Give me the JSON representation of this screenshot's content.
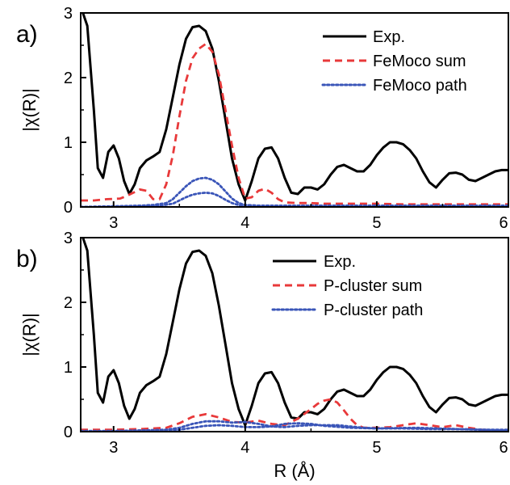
{
  "chart_data": [
    {
      "type": "line",
      "panel_label": "a)",
      "ylabel": "|χ(R)|",
      "xlabel": "",
      "xlim": [
        2.75,
        6.0
      ],
      "ylim": [
        0,
        3
      ],
      "xticks": [
        3,
        4,
        5,
        6
      ],
      "xtick_labels": [
        "3",
        "4",
        "5",
        "6"
      ],
      "yticks": [
        0,
        1,
        2,
        3
      ],
      "ytick_labels": [
        "0",
        "1",
        "2",
        "3"
      ],
      "legend_position": "top-right",
      "grid": false,
      "series": [
        {
          "name": "Exp.",
          "color": "#000000",
          "style": "solid",
          "x": [
            2.75,
            2.8,
            2.85,
            2.88,
            2.92,
            2.96,
            3.0,
            3.04,
            3.08,
            3.12,
            3.16,
            3.2,
            3.25,
            3.3,
            3.35,
            3.4,
            3.45,
            3.5,
            3.55,
            3.6,
            3.65,
            3.7,
            3.75,
            3.8,
            3.85,
            3.9,
            3.95,
            4.0,
            4.05,
            4.1,
            4.15,
            4.2,
            4.25,
            4.3,
            4.35,
            4.4,
            4.45,
            4.5,
            4.55,
            4.6,
            4.65,
            4.7,
            4.75,
            4.8,
            4.85,
            4.9,
            4.95,
            5.0,
            5.05,
            5.1,
            5.15,
            5.2,
            5.25,
            5.3,
            5.35,
            5.4,
            5.45,
            5.5,
            5.55,
            5.6,
            5.65,
            5.7,
            5.75,
            5.8,
            5.85,
            5.9,
            5.95,
            6.0
          ],
          "y": [
            3.1,
            2.8,
            1.5,
            0.6,
            0.45,
            0.85,
            0.95,
            0.75,
            0.4,
            0.2,
            0.35,
            0.6,
            0.72,
            0.78,
            0.85,
            1.2,
            1.7,
            2.2,
            2.6,
            2.78,
            2.8,
            2.72,
            2.45,
            1.95,
            1.35,
            0.75,
            0.35,
            0.1,
            0.4,
            0.75,
            0.9,
            0.92,
            0.75,
            0.45,
            0.22,
            0.2,
            0.3,
            0.3,
            0.27,
            0.35,
            0.5,
            0.62,
            0.65,
            0.6,
            0.55,
            0.55,
            0.65,
            0.8,
            0.92,
            1.0,
            1.0,
            0.97,
            0.88,
            0.75,
            0.55,
            0.38,
            0.3,
            0.42,
            0.52,
            0.53,
            0.5,
            0.42,
            0.4,
            0.45,
            0.5,
            0.55,
            0.57,
            0.57
          ]
        },
        {
          "name": "FeMoco sum",
          "color": "#e8393a",
          "style": "dashed",
          "x": [
            2.75,
            2.85,
            2.95,
            3.05,
            3.1,
            3.15,
            3.2,
            3.25,
            3.3,
            3.35,
            3.4,
            3.45,
            3.5,
            3.55,
            3.6,
            3.65,
            3.7,
            3.75,
            3.8,
            3.85,
            3.9,
            3.95,
            4.0,
            4.05,
            4.1,
            4.15,
            4.2,
            4.25,
            4.3,
            4.4,
            4.5,
            4.6,
            4.8,
            5.0,
            5.2,
            5.4,
            5.6,
            5.8,
            6.0
          ],
          "y": [
            0.1,
            0.1,
            0.12,
            0.13,
            0.17,
            0.22,
            0.27,
            0.25,
            0.12,
            0.12,
            0.35,
            0.8,
            1.4,
            1.95,
            2.3,
            2.45,
            2.52,
            2.4,
            2.05,
            1.5,
            0.95,
            0.45,
            0.13,
            0.15,
            0.25,
            0.28,
            0.22,
            0.12,
            0.07,
            0.06,
            0.06,
            0.05,
            0.05,
            0.05,
            0.04,
            0.04,
            0.04,
            0.04,
            0.04
          ]
        },
        {
          "name": "FeMoco path",
          "color": "#3a55b8",
          "style": "dotted",
          "x": [
            2.75,
            3.0,
            3.2,
            3.3,
            3.4,
            3.45,
            3.5,
            3.55,
            3.6,
            3.65,
            3.7,
            3.75,
            3.8,
            3.85,
            3.9,
            3.95,
            4.0,
            4.1,
            4.3,
            4.5,
            5.0,
            5.5,
            6.0
          ],
          "y": [
            0.0,
            0.01,
            0.02,
            0.03,
            0.06,
            0.12,
            0.22,
            0.32,
            0.4,
            0.44,
            0.45,
            0.42,
            0.35,
            0.24,
            0.13,
            0.06,
            0.03,
            0.02,
            0.02,
            0.02,
            0.02,
            0.02,
            0.02
          ]
        },
        {
          "name": "",
          "color": "#3a55b8",
          "style": "dotted",
          "x": [
            2.75,
            3.2,
            3.35,
            3.45,
            3.5,
            3.55,
            3.6,
            3.65,
            3.7,
            3.75,
            3.8,
            3.85,
            3.9,
            3.95,
            4.0,
            4.2,
            4.5,
            5.0,
            6.0
          ],
          "y": [
            0.0,
            0.01,
            0.02,
            0.05,
            0.1,
            0.15,
            0.19,
            0.21,
            0.22,
            0.21,
            0.17,
            0.11,
            0.06,
            0.03,
            0.01,
            0.01,
            0.01,
            0.01,
            0.01
          ]
        }
      ]
    },
    {
      "type": "line",
      "panel_label": "b)",
      "ylabel": "|χ(R)|",
      "xlabel": "R (Å)",
      "xlim": [
        2.75,
        6.0
      ],
      "ylim": [
        0,
        3
      ],
      "xticks": [
        3,
        4,
        5,
        6
      ],
      "xtick_labels": [
        "3",
        "4",
        "5",
        "6"
      ],
      "yticks": [
        0,
        1,
        2,
        3
      ],
      "ytick_labels": [
        "0",
        "1",
        "2",
        "3"
      ],
      "legend_position": "top-right",
      "grid": false,
      "series": [
        {
          "name": "Exp.",
          "color": "#000000",
          "style": "solid",
          "x": [
            2.75,
            2.8,
            2.85,
            2.88,
            2.92,
            2.96,
            3.0,
            3.04,
            3.08,
            3.12,
            3.16,
            3.2,
            3.25,
            3.3,
            3.35,
            3.4,
            3.45,
            3.5,
            3.55,
            3.6,
            3.65,
            3.7,
            3.75,
            3.8,
            3.85,
            3.9,
            3.95,
            4.0,
            4.05,
            4.1,
            4.15,
            4.2,
            4.25,
            4.3,
            4.35,
            4.4,
            4.45,
            4.5,
            4.55,
            4.6,
            4.65,
            4.7,
            4.75,
            4.8,
            4.85,
            4.9,
            4.95,
            5.0,
            5.05,
            5.1,
            5.15,
            5.2,
            5.25,
            5.3,
            5.35,
            5.4,
            5.45,
            5.5,
            5.55,
            5.6,
            5.65,
            5.7,
            5.75,
            5.8,
            5.85,
            5.9,
            5.95,
            6.0
          ],
          "y": [
            3.1,
            2.8,
            1.5,
            0.6,
            0.45,
            0.85,
            0.95,
            0.75,
            0.4,
            0.2,
            0.35,
            0.6,
            0.72,
            0.78,
            0.85,
            1.2,
            1.7,
            2.2,
            2.6,
            2.78,
            2.8,
            2.72,
            2.45,
            1.95,
            1.35,
            0.75,
            0.35,
            0.1,
            0.4,
            0.75,
            0.9,
            0.92,
            0.75,
            0.45,
            0.22,
            0.2,
            0.3,
            0.3,
            0.27,
            0.35,
            0.5,
            0.62,
            0.65,
            0.6,
            0.55,
            0.55,
            0.65,
            0.8,
            0.92,
            1.0,
            1.0,
            0.97,
            0.88,
            0.75,
            0.55,
            0.38,
            0.3,
            0.42,
            0.52,
            0.53,
            0.5,
            0.42,
            0.4,
            0.45,
            0.5,
            0.55,
            0.57,
            0.57
          ]
        },
        {
          "name": "P-cluster sum",
          "color": "#e8393a",
          "style": "dashed",
          "x": [
            2.75,
            3.0,
            3.2,
            3.4,
            3.5,
            3.6,
            3.7,
            3.8,
            3.9,
            4.0,
            4.1,
            4.2,
            4.3,
            4.4,
            4.5,
            4.55,
            4.6,
            4.65,
            4.7,
            4.75,
            4.8,
            4.85,
            4.9,
            5.0,
            5.1,
            5.2,
            5.3,
            5.4,
            5.5,
            5.6,
            5.7,
            5.8,
            5.9,
            6.0
          ],
          "y": [
            0.03,
            0.03,
            0.04,
            0.06,
            0.13,
            0.23,
            0.27,
            0.22,
            0.15,
            0.14,
            0.17,
            0.12,
            0.1,
            0.2,
            0.35,
            0.43,
            0.48,
            0.5,
            0.45,
            0.33,
            0.2,
            0.1,
            0.06,
            0.06,
            0.07,
            0.1,
            0.13,
            0.1,
            0.07,
            0.1,
            0.06,
            0.03,
            0.02,
            0.02
          ]
        },
        {
          "name": "P-cluster path",
          "color": "#3a55b8",
          "style": "dotted",
          "x": [
            2.75,
            3.0,
            3.2,
            3.4,
            3.5,
            3.6,
            3.7,
            3.8,
            3.9,
            4.0,
            4.1,
            4.2,
            4.3,
            4.4,
            4.5,
            4.6,
            4.7,
            4.8,
            4.9,
            5.0,
            5.2,
            5.4,
            5.6,
            5.8,
            6.0
          ],
          "y": [
            0.01,
            0.01,
            0.02,
            0.03,
            0.06,
            0.12,
            0.16,
            0.16,
            0.14,
            0.15,
            0.12,
            0.08,
            0.07,
            0.09,
            0.1,
            0.1,
            0.1,
            0.08,
            0.06,
            0.05,
            0.05,
            0.04,
            0.04,
            0.03,
            0.03
          ]
        },
        {
          "name": "",
          "color": "#3a55b8",
          "style": "dotted",
          "x": [
            2.75,
            3.2,
            3.5,
            3.6,
            3.7,
            3.8,
            3.9,
            4.0,
            4.1,
            4.2,
            4.3,
            4.4,
            4.5,
            4.6,
            4.8,
            5.0,
            5.3,
            5.6,
            6.0
          ],
          "y": [
            0.0,
            0.01,
            0.03,
            0.06,
            0.09,
            0.1,
            0.09,
            0.07,
            0.07,
            0.08,
            0.12,
            0.13,
            0.12,
            0.09,
            0.06,
            0.05,
            0.06,
            0.04,
            0.02
          ]
        }
      ]
    }
  ]
}
